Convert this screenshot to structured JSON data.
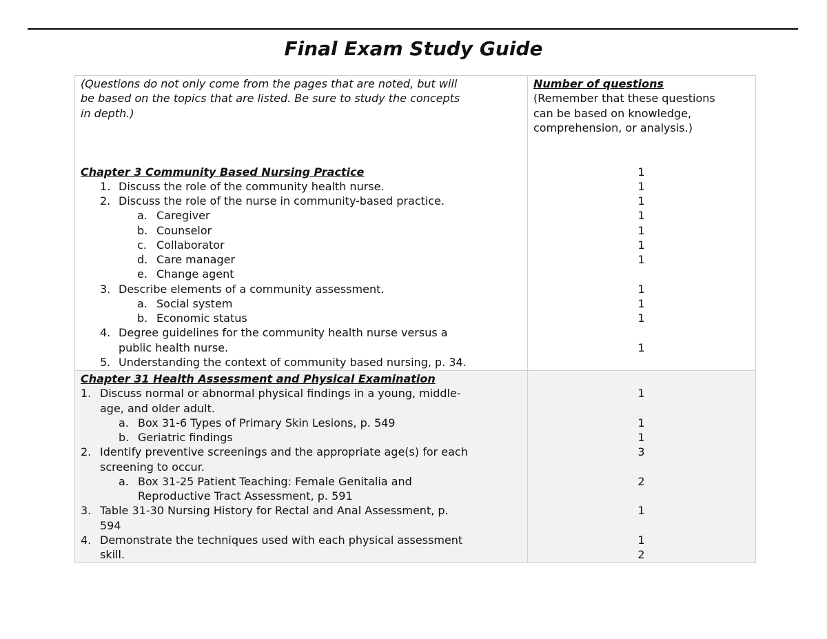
{
  "title": "Final Exam Study Guide",
  "rows": [
    {
      "shaded": false,
      "lines": [
        {
          "text": "(Questions do not only come from the pages that are noted, but will",
          "style": "italic",
          "right": "Number of questions",
          "right_style": "head"
        },
        {
          "text": "be based on the topics that are listed. Be sure to study the concepts",
          "style": "italic",
          "right": "(Remember that these questions"
        },
        {
          "text": "in depth.)",
          "style": "italic",
          "right": "can be based on knowledge,"
        },
        {
          "text": "",
          "right": "comprehension, or analysis.)"
        },
        {
          "text": ""
        },
        {
          "text": ""
        },
        {
          "text": "Chapter 3 Community Based Nursing Practice",
          "style": "head",
          "level": 0,
          "num": "1"
        },
        {
          "marker": "1.",
          "text": "Discuss the role of the community health nurse.",
          "level": 1,
          "num": "1"
        },
        {
          "marker": "2.",
          "text": "Discuss the role of the nurse in community-based practice.",
          "level": 1,
          "num": "1"
        },
        {
          "marker": "a.",
          "text": "Caregiver",
          "level": 2,
          "num": "1"
        },
        {
          "marker": "b.",
          "text": "Counselor",
          "level": 2,
          "num": "1"
        },
        {
          "marker": "c.",
          "text": "Collaborator",
          "level": 2,
          "num": "1"
        },
        {
          "marker": "d.",
          "text": "Care manager",
          "level": 2,
          "num": "1"
        },
        {
          "marker": "e.",
          "text": "Change agent",
          "level": 2
        },
        {
          "marker": "3.",
          "text": "Describe elements of a community assessment.",
          "level": 1,
          "num": "1"
        },
        {
          "marker": "a.",
          "text": "Social system",
          "level": 2,
          "num": "1"
        },
        {
          "marker": "b.",
          "text": "Economic status",
          "level": 2,
          "num": "1"
        },
        {
          "marker": "4.",
          "text": "Degree guidelines for the community health nurse versus a",
          "level": 1
        },
        {
          "text": "public health nurse.",
          "level": 1,
          "num": "1"
        },
        {
          "marker": "5.",
          "text": "Understanding the context of community based nursing, p. 34.",
          "level": 1
        }
      ]
    },
    {
      "shaded": true,
      "lines": [
        {
          "text": "Chapter 31 Health Assessment and Physical Examination",
          "style": "head",
          "level": 0
        },
        {
          "marker": "1.",
          "text": "Discuss normal or abnormal physical findings in a young, middle-",
          "level": 1,
          "num": "1"
        },
        {
          "text": "age, and older adult.",
          "level": 1
        },
        {
          "marker": "a.",
          "text": "Box 31-6 Types of Primary Skin Lesions, p. 549",
          "level": 2,
          "num": "1"
        },
        {
          "marker": "b.",
          "text": "Geriatric findings",
          "level": 2,
          "num": "1"
        },
        {
          "marker": "2.",
          "text": "Identify preventive screenings and the appropriate age(s) for each",
          "level": 1,
          "num": "3"
        },
        {
          "text": "screening to occur.",
          "level": 1
        },
        {
          "marker": "a.",
          "text": "Box 31-25 Patient Teaching: Female Genitalia and",
          "level": 2,
          "num": "2"
        },
        {
          "text": "Reproductive Tract Assessment, p. 591",
          "level": 2
        },
        {
          "marker": "3.",
          "text": "Table 31-30 Nursing History for Rectal and Anal Assessment, p.",
          "level": 1,
          "num": "1"
        },
        {
          "text": "594",
          "level": 1
        },
        {
          "marker": "4.",
          "text": "Demonstrate the techniques used with each physical assessment",
          "level": 1,
          "num": "1"
        },
        {
          "text": "skill.",
          "level": 1,
          "num": "2"
        }
      ]
    }
  ]
}
